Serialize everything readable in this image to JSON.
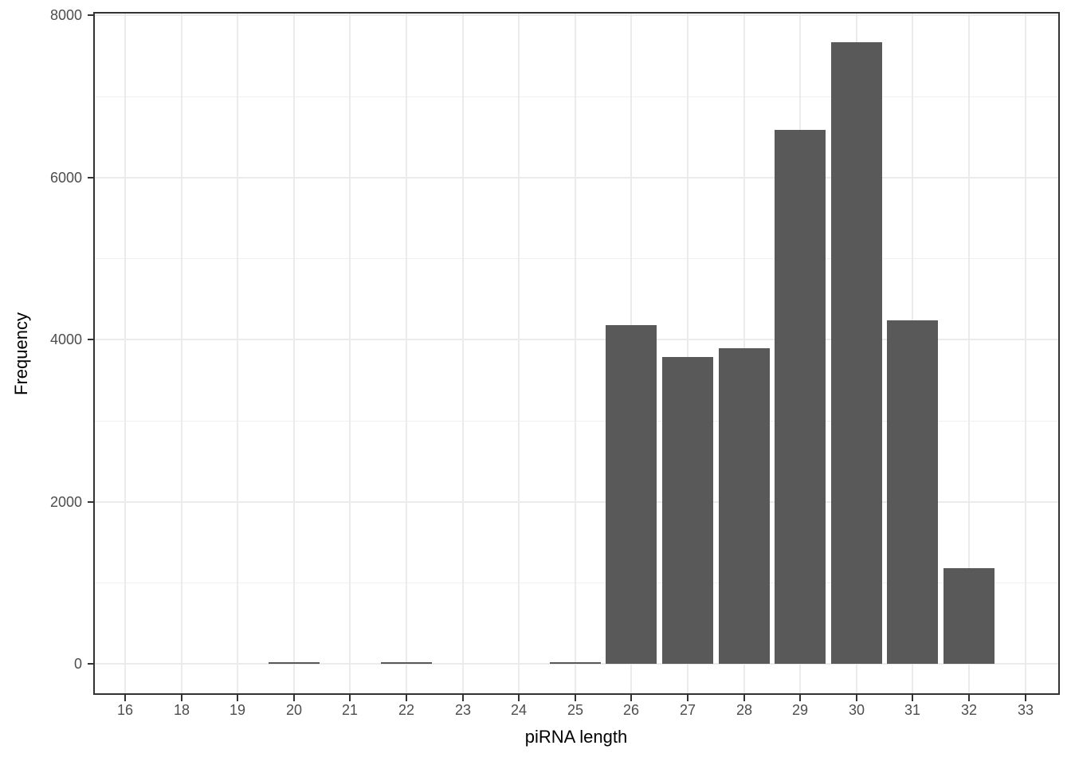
{
  "chart_data": {
    "type": "bar",
    "title": "",
    "xlabel": "piRNA length",
    "ylabel": "Frequency",
    "categories": [
      "16",
      "18",
      "19",
      "20",
      "21",
      "22",
      "23",
      "24",
      "25",
      "26",
      "27",
      "28",
      "29",
      "30",
      "31",
      "32",
      "33"
    ],
    "values": [
      0,
      0,
      0,
      20,
      0,
      20,
      0,
      0,
      15,
      4180,
      3785,
      3890,
      6585,
      7665,
      4235,
      1180,
      0
    ],
    "yticks": [
      0,
      2000,
      4000,
      6000,
      8000
    ],
    "ytick_labels": [
      "0",
      "2000",
      "4000",
      "6000",
      "8000"
    ],
    "yminor": [
      1000,
      3000,
      5000,
      7000
    ],
    "ylim": [
      -365,
      8020
    ],
    "grid": "on",
    "legend": "none",
    "colors": {
      "bar_fill": "#595959",
      "panel_border": "#333333",
      "grid_major": "#EBEBEB",
      "grid_minor": "#F0F0F0",
      "tick_mark": "#333333",
      "tick_label": "#4D4D4D",
      "axis_title": "#000000",
      "background": "#FFFFFF"
    }
  }
}
